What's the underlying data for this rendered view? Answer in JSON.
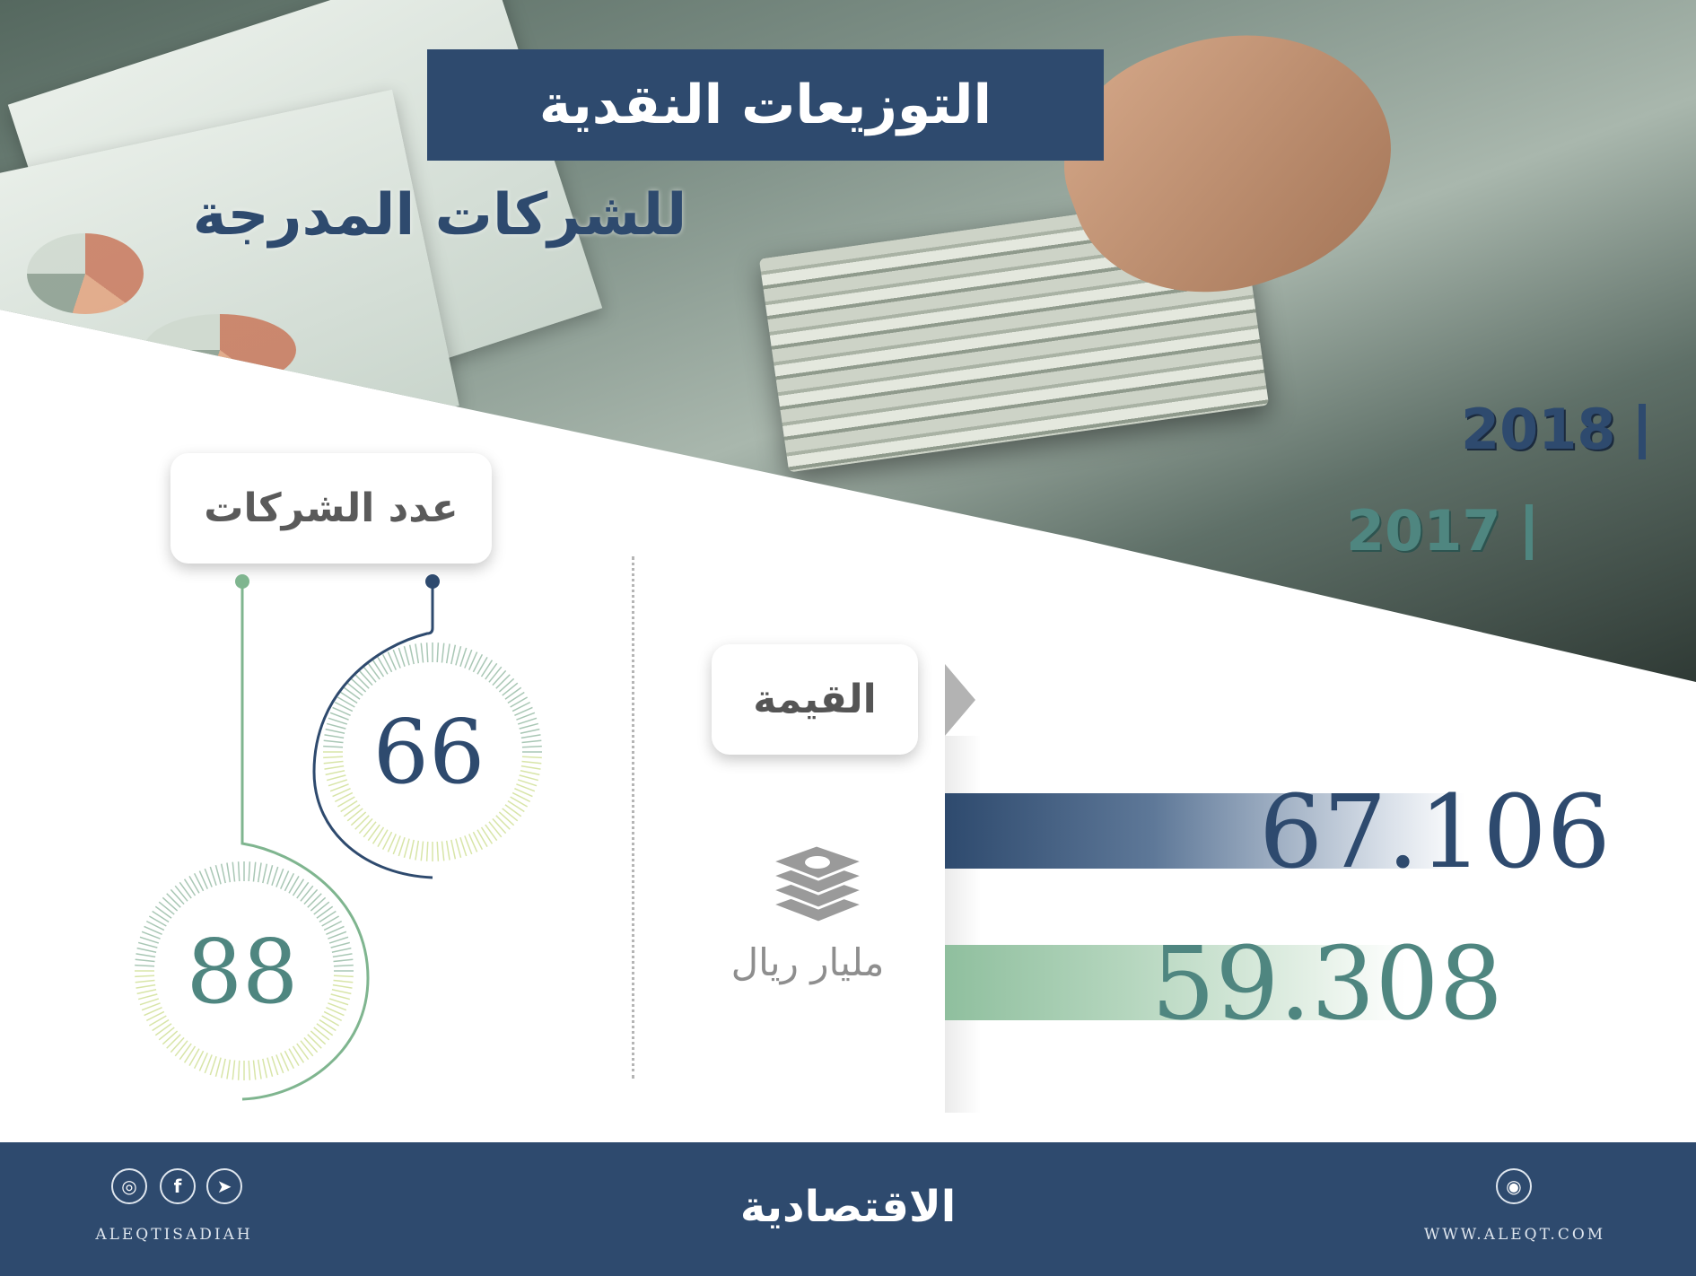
{
  "title": {
    "line1": "التوزيعات النقدية",
    "line2": "للشركات المدرجة"
  },
  "legend": {
    "year_2018": "2018",
    "year_2017": "2017",
    "color_2018": "#2e4a6e",
    "color_2017": "#4f8680"
  },
  "companies": {
    "label": "عدد الشركات",
    "count_2018": "66",
    "count_2017": "88"
  },
  "value": {
    "label": "القيمة",
    "unit": "مليار ريال",
    "value_2018": "67.106",
    "value_2017": "59.308"
  },
  "footer": {
    "logo": "الاقتصادية",
    "handle": "ALEQTISADIAH",
    "website": "WWW.ALEQT.COM",
    "social_icons": [
      "instagram-icon",
      "facebook-icon",
      "twitter-icon",
      "dribbble-icon"
    ],
    "background": "#2e4a6e"
  }
}
